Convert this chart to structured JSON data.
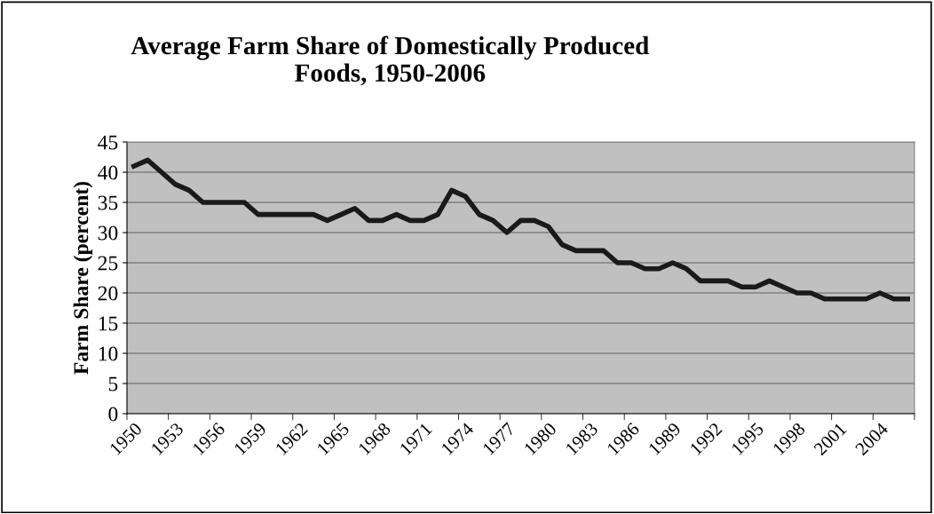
{
  "chart_data": {
    "type": "line",
    "title": "Average Farm Share of Domestically Produced\nFoods, 1950-2006",
    "ylabel": "Farm Share (percent)",
    "categories": [
      "1950",
      null,
      null,
      "1953",
      null,
      null,
      "1956",
      null,
      null,
      "1959",
      null,
      null,
      "1962",
      null,
      null,
      "1965",
      null,
      null,
      "1968",
      null,
      null,
      "1971",
      null,
      null,
      "1974",
      null,
      null,
      "1977",
      null,
      null,
      "1980",
      null,
      null,
      "1983",
      null,
      null,
      "1986",
      null,
      null,
      "1989",
      null,
      null,
      "1992",
      null,
      null,
      "1995",
      null,
      null,
      "1998",
      null,
      null,
      "2001",
      null,
      null,
      "2004",
      null,
      null
    ],
    "series": [
      {
        "color": "#1a1a1a",
        "values": [
          41,
          42,
          40,
          38,
          37,
          35,
          35,
          35,
          35,
          33,
          33,
          33,
          33,
          33,
          32,
          33,
          34,
          32,
          32,
          33,
          32,
          32,
          33,
          37,
          36,
          33,
          32,
          30,
          32,
          32,
          31,
          28,
          27,
          27,
          27,
          25,
          25,
          24,
          24,
          25,
          24,
          22,
          22,
          22,
          21,
          21,
          22,
          21,
          20,
          20,
          19,
          19,
          19,
          19,
          20,
          19,
          19
        ]
      }
    ],
    "ylim": [
      0,
      45
    ],
    "yticks": [
      0,
      5,
      10,
      15,
      20,
      25,
      30,
      35,
      40,
      45
    ],
    "grid": "y",
    "legend": false,
    "marker": "none",
    "line_style": "solid"
  }
}
